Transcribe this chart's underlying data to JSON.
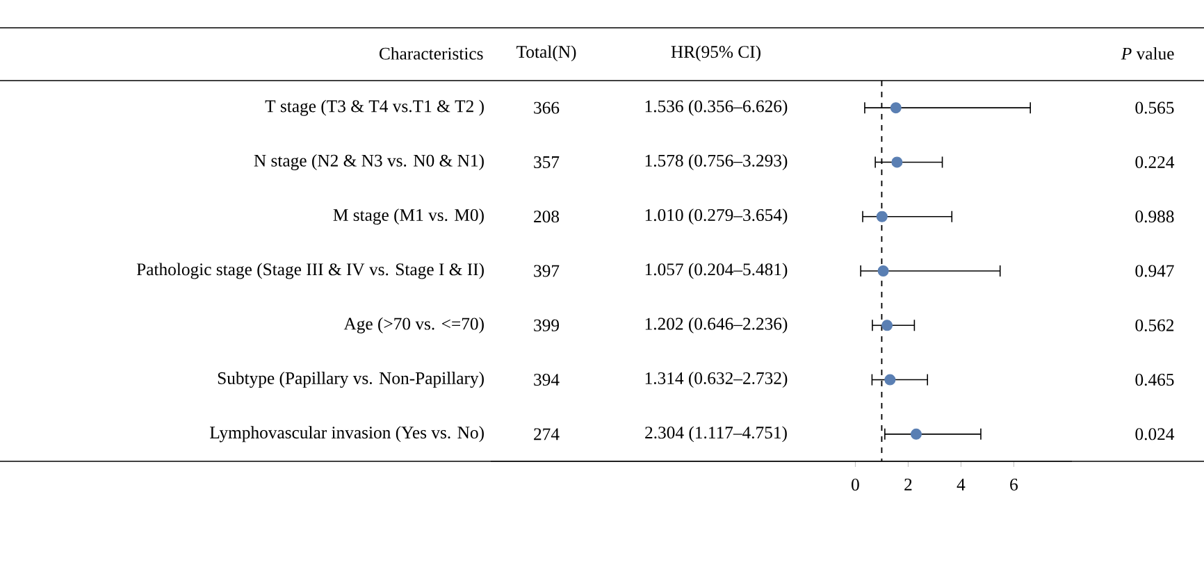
{
  "chart_data": {
    "type": "scatter",
    "orientation": "horizontal",
    "categories": [
      "T stage (T3 & T4 vs.T1 & T2 )",
      "N stage (N2 & N3 vs. N0 & N1)",
      "M stage (M1 vs. M0)",
      "Pathologic stage (Stage III & IV vs. Stage I & II)",
      "Age (>70 vs. <=70)",
      "Subtype (Papillary vs. Non-Papillary)",
      "Lymphovascular invasion (Yes vs. No)"
    ],
    "values": [
      1.536,
      1.578,
      1.01,
      1.057,
      1.202,
      1.314,
      2.304
    ],
    "errors": [
      [
        0.356,
        6.626
      ],
      [
        0.756,
        3.293
      ],
      [
        0.279,
        3.654
      ],
      [
        0.204,
        5.481
      ],
      [
        0.646,
        2.236
      ],
      [
        0.632,
        2.732
      ],
      [
        1.117,
        4.751
      ]
    ],
    "color": "#5a7fb3",
    "marker": "circle",
    "xlim": [
      -13.8,
      8.2
    ],
    "xticks": [
      0,
      2,
      4,
      6
    ],
    "ref_lines": [
      {
        "axis": "x",
        "value": 1,
        "line_style": "dashed",
        "color": "#000000"
      }
    ],
    "annotations": [
      "Characteristics",
      "Total(N)",
      "366",
      "357",
      "208",
      "397",
      "399",
      "394",
      "274",
      "HR(95% CI)",
      "1.536 (0.356–6.626)",
      "1.578 (0.756–3.293)",
      "1.010 (0.279–3.654)",
      "1.057 (0.204–5.481)",
      "1.202 (0.646–2.236)",
      "1.314 (0.632–2.732)",
      "2.304 (1.117–4.751)",
      "*P* value",
      "0.565",
      "0.224",
      "0.988",
      "0.947",
      "0.562",
      "0.465",
      "0.024"
    ]
  }
}
